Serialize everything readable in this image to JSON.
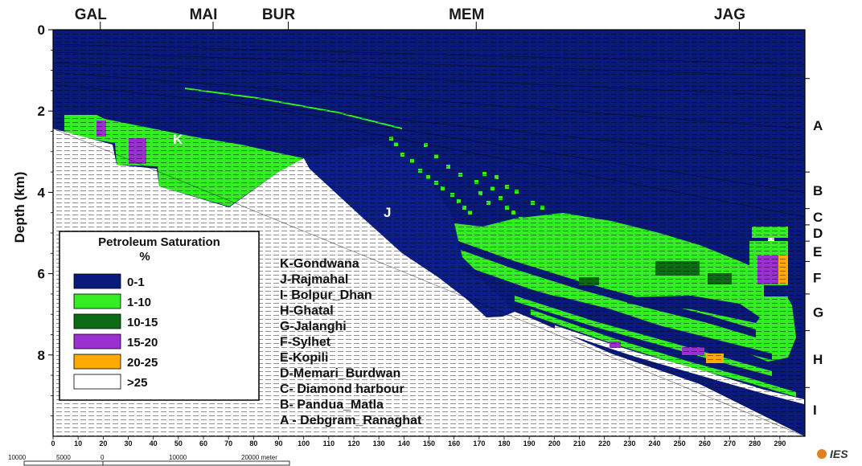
{
  "chart_data": {
    "type": "heatmap",
    "title": "",
    "ylabel": "Depth (km)",
    "xlabel": "",
    "x_ticks": [
      0,
      10,
      20,
      30,
      40,
      50,
      60,
      70,
      80,
      90,
      100,
      110,
      120,
      130,
      140,
      150,
      160,
      170,
      180,
      190,
      200,
      210,
      220,
      230,
      240,
      250,
      260,
      270,
      280,
      290
    ],
    "y_ticks": [
      0,
      2,
      4,
      6,
      8
    ],
    "xlim": [
      0,
      300
    ],
    "ylim": [
      10,
      0
    ],
    "wells": [
      {
        "name": "GAL",
        "x": 15
      },
      {
        "name": "MAI",
        "x": 60
      },
      {
        "name": "BUR",
        "x": 90
      },
      {
        "name": "MEM",
        "x": 165
      },
      {
        "name": "JAG",
        "x": 270
      }
    ],
    "zones": [
      {
        "label": "A",
        "top": 1.2,
        "bottom": 3.5
      },
      {
        "label": "B",
        "top": 3.5,
        "bottom": 4.4
      },
      {
        "label": "C",
        "top": 4.4,
        "bottom": 4.8
      },
      {
        "label": "D",
        "top": 4.8,
        "bottom": 5.2
      },
      {
        "label": "E",
        "top": 5.2,
        "bottom": 5.7
      },
      {
        "label": "F",
        "top": 5.7,
        "bottom": 6.5
      },
      {
        "label": "G",
        "top": 6.5,
        "bottom": 7.4
      },
      {
        "label": "H",
        "top": 7.4,
        "bottom": 8.8
      },
      {
        "label": "I",
        "top": 8.8,
        "bottom": 9.9
      }
    ],
    "body_labels": [
      {
        "label": "K",
        "x": 50,
        "depth": 2.7
      },
      {
        "label": "J",
        "x": 135,
        "depth": 4.5
      }
    ],
    "formations": [
      "K-Gondwana",
      "J-Rajmahal",
      "I- Bolpur_Dhan",
      "H-Ghatal",
      "G-Jalanghi",
      "F-Sylhet",
      "E-Kopili",
      "D-Memari_Burdwan",
      "C- Diamond harbour",
      "B- Pandua_Matla",
      "A - Debgram_Ranaghat"
    ],
    "legend": {
      "title": "Petroleum Saturation",
      "unit": "%",
      "items": [
        {
          "label": "0-1",
          "color": "#0a1a7a"
        },
        {
          "label": "1-10",
          "color": "#33ee22"
        },
        {
          "label": "10-15",
          "color": "#0d6b16"
        },
        {
          "label": "15-20",
          "color": "#9b30d0"
        },
        {
          "label": "20-25",
          "color": "#ffaa00"
        },
        {
          "label": ">25",
          "color": "#ffffff"
        }
      ]
    },
    "scale_bar": {
      "labels": [
        "10000",
        "5000",
        "0",
        "10000",
        "20000 meter"
      ]
    },
    "logo": "IES"
  }
}
